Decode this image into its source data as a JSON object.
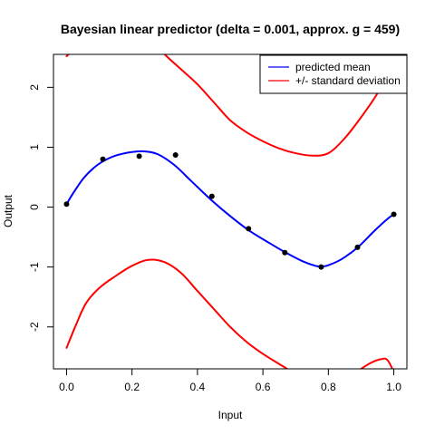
{
  "chart_data": {
    "type": "line",
    "title": "Bayesian linear predictor (delta = 0.001, approx. g = 459)",
    "xlabel": "Input",
    "ylabel": "Output",
    "xlim": [
      -0.04,
      1.04
    ],
    "ylim": [
      -2.7,
      2.55
    ],
    "x_ticks": [
      "0.0",
      "0.2",
      "0.4",
      "0.6",
      "0.8",
      "1.0"
    ],
    "y_ticks": [
      "-2",
      "-1",
      "0",
      "1",
      "2"
    ],
    "grid": false,
    "legend_position": "top-right",
    "legend": [
      {
        "label": "predicted mean",
        "color": "#0000ff"
      },
      {
        "label": "+/- standard deviation",
        "color": "#ff0000"
      }
    ],
    "points": {
      "x": [
        0.0,
        0.111,
        0.222,
        0.333,
        0.444,
        0.556,
        0.667,
        0.778,
        0.889,
        1.0
      ],
      "y": [
        0.05,
        0.8,
        0.85,
        0.87,
        0.18,
        -0.36,
        -0.76,
        -1.0,
        -0.67,
        -0.12
      ],
      "color": "#000000"
    },
    "series": [
      {
        "name": "predicted mean",
        "color": "#0000ff",
        "x": [
          0.0,
          0.02,
          0.05,
          0.08,
          0.11,
          0.15,
          0.2,
          0.24,
          0.28,
          0.33,
          0.38,
          0.44,
          0.5,
          0.56,
          0.62,
          0.67,
          0.72,
          0.76,
          0.78,
          0.8,
          0.84,
          0.89,
          0.94,
          0.98,
          1.0
        ],
        "y": [
          0.05,
          0.23,
          0.47,
          0.64,
          0.76,
          0.86,
          0.92,
          0.93,
          0.88,
          0.7,
          0.44,
          0.13,
          -0.15,
          -0.4,
          -0.6,
          -0.76,
          -0.9,
          -0.98,
          -0.99,
          -0.97,
          -0.87,
          -0.67,
          -0.4,
          -0.2,
          -0.12
        ]
      },
      {
        "name": "mean + sd",
        "color": "#ff0000",
        "x": [
          0.0,
          0.03,
          0.06,
          0.1,
          0.15,
          0.2,
          0.25,
          0.3,
          0.35,
          0.4,
          0.45,
          0.5,
          0.55,
          0.6,
          0.65,
          0.7,
          0.75,
          0.8,
          0.85,
          0.9,
          0.95,
          1.0
        ],
        "y": [
          2.52,
          2.66,
          2.8,
          2.95,
          3.05,
          3.1,
          2.85,
          2.55,
          2.3,
          2.05,
          1.75,
          1.45,
          1.25,
          1.1,
          0.98,
          0.9,
          0.86,
          0.9,
          1.15,
          1.5,
          1.9,
          2.4
        ]
      },
      {
        "name": "mean - sd",
        "color": "#ff0000",
        "x": [
          0.0,
          0.03,
          0.06,
          0.1,
          0.15,
          0.2,
          0.25,
          0.3,
          0.35,
          0.4,
          0.45,
          0.5,
          0.55,
          0.6,
          0.65,
          0.7,
          0.75,
          0.8,
          0.85,
          0.9,
          0.93,
          0.96,
          0.98,
          1.0
        ],
        "y": [
          -2.35,
          -1.95,
          -1.6,
          -1.35,
          -1.15,
          -0.98,
          -0.88,
          -0.92,
          -1.1,
          -1.4,
          -1.7,
          -2.0,
          -2.25,
          -2.45,
          -2.62,
          -2.78,
          -2.9,
          -2.98,
          -2.88,
          -2.7,
          -2.6,
          -2.54,
          -2.55,
          -2.75
        ]
      }
    ]
  }
}
